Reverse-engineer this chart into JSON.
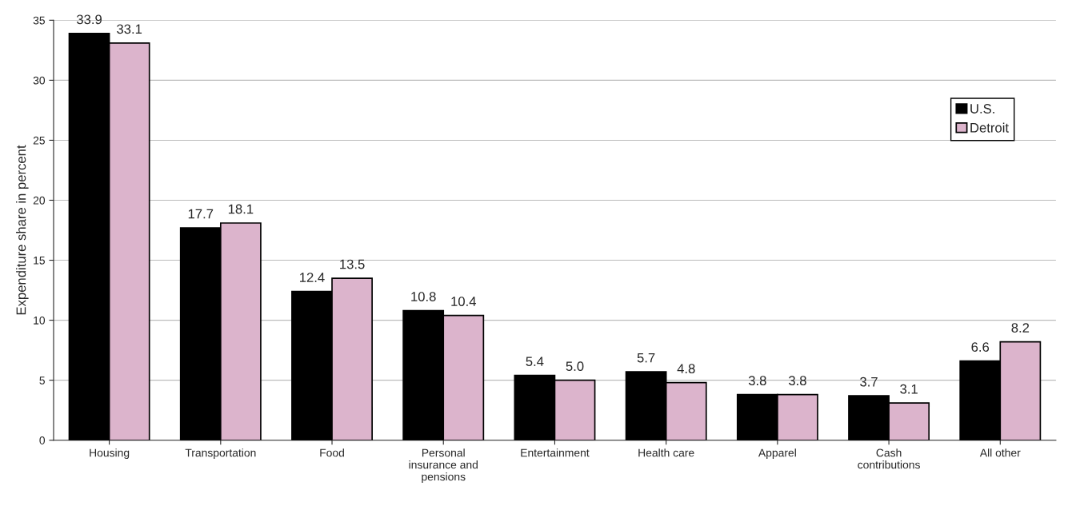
{
  "chart_data": {
    "type": "bar",
    "ylabel": "Expenditure share in percent",
    "categories": [
      "Housing",
      "Transportation",
      "Food",
      "Personal\ninsurance and\npensions",
      "Entertainment",
      "Health care",
      "Apparel",
      "Cash\ncontributions",
      "All other"
    ],
    "series": [
      {
        "name": "U.S.",
        "color": "#000000",
        "values": [
          33.9,
          17.7,
          12.4,
          10.8,
          5.4,
          5.7,
          3.8,
          3.7,
          6.6
        ],
        "value_labels": [
          "33.9",
          "17.7",
          "12.4",
          "10.8",
          "5.4",
          "5.7",
          "3.8",
          "3.7",
          "6.6"
        ]
      },
      {
        "name": "Detroit",
        "color": "#dcb4cc",
        "values": [
          33.1,
          18.1,
          13.5,
          10.4,
          5.0,
          4.8,
          3.8,
          3.1,
          8.2
        ],
        "value_labels": [
          "33.1",
          "18.1",
          "13.5",
          "10.4",
          "5.0",
          "4.8",
          "3.8",
          "3.1",
          "8.2"
        ]
      }
    ],
    "ylim": [
      0,
      35
    ],
    "yticks": [
      0,
      5,
      10,
      15,
      20,
      25,
      30,
      35
    ],
    "grid": "y",
    "legend": "top right"
  }
}
